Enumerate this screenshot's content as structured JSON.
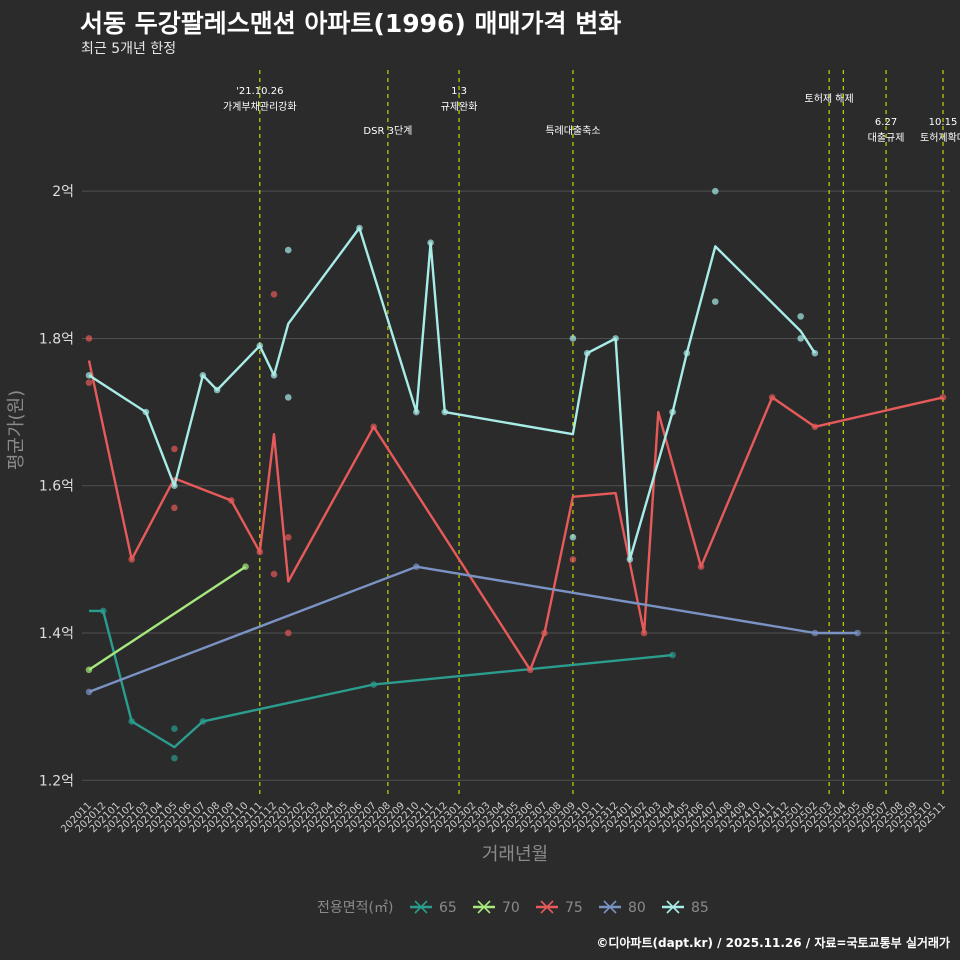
{
  "title": "서동 두강팔레스맨션 아파트(1996) 매매가격 변화",
  "subtitle": "최근 5개년 한정",
  "caption": "©디아파트(dapt.kr) / 2025.11.26 / 자료=국토교통부 실거래가",
  "chart_data": {
    "type": "line",
    "xlabel": "거래년월",
    "ylabel": "평균가(원)",
    "ylim": [
      1.18,
      2.17
    ],
    "y_unit": "억",
    "y_ticks": [
      {
        "value": 1.2,
        "label": "1.2억"
      },
      {
        "value": 1.4,
        "label": "1.4억"
      },
      {
        "value": 1.6,
        "label": "1.6억"
      },
      {
        "value": 1.8,
        "label": "1.8억"
      },
      {
        "value": 2.0,
        "label": "2억"
      }
    ],
    "categories": [
      "202011",
      "202012",
      "202101",
      "202102",
      "202103",
      "202104",
      "202105",
      "202106",
      "202107",
      "202108",
      "202109",
      "202110",
      "202111",
      "202112",
      "202201",
      "202202",
      "202203",
      "202204",
      "202205",
      "202206",
      "202207",
      "202208",
      "202209",
      "202210",
      "202211",
      "202212",
      "202301",
      "202302",
      "202303",
      "202304",
      "202305",
      "202306",
      "202307",
      "202308",
      "202309",
      "202310",
      "202311",
      "202312",
      "202401",
      "202402",
      "202403",
      "202404",
      "202405",
      "202406",
      "202407",
      "202408",
      "202409",
      "202410",
      "202411",
      "202412",
      "202501",
      "202502",
      "202503",
      "202504",
      "202505",
      "202506",
      "202507",
      "202508",
      "202509",
      "202510",
      "202511"
    ],
    "legend_title": "전용면적(㎡)",
    "series": [
      {
        "name": "65",
        "color": "#2a9d8f",
        "line": [
          [
            "202011",
            1.43
          ],
          [
            "202012",
            1.43
          ],
          [
            "202102",
            1.28
          ],
          [
            "202105",
            1.245
          ],
          [
            "202107",
            1.28
          ],
          [
            "202207",
            1.33
          ],
          [
            "202404",
            1.37
          ]
        ],
        "points": [
          [
            "202012",
            1.43
          ],
          [
            "202102",
            1.28
          ],
          [
            "202105",
            1.27
          ],
          [
            "202105",
            1.23
          ],
          [
            "202107",
            1.28
          ],
          [
            "202207",
            1.33
          ],
          [
            "202404",
            1.37
          ]
        ]
      },
      {
        "name": "70",
        "color": "#a6e87e",
        "line": [
          [
            "202011",
            1.35
          ],
          [
            "202110",
            1.49
          ]
        ],
        "points": [
          [
            "202011",
            1.35
          ],
          [
            "202110",
            1.49
          ]
        ]
      },
      {
        "name": "75",
        "color": "#e65a5a",
        "line": [
          [
            "202011",
            1.77
          ],
          [
            "202102",
            1.5
          ],
          [
            "202105",
            1.61
          ],
          [
            "202109",
            1.58
          ],
          [
            "202111",
            1.51
          ],
          [
            "202112",
            1.67
          ],
          [
            "202201",
            1.47
          ],
          [
            "202207",
            1.68
          ],
          [
            "202306",
            1.35
          ],
          [
            "202307",
            1.4
          ],
          [
            "202309",
            1.585
          ],
          [
            "202312",
            1.59
          ],
          [
            "202402",
            1.4
          ],
          [
            "202403",
            1.7
          ],
          [
            "202406",
            1.49
          ],
          [
            "202411",
            1.72
          ],
          [
            "202502",
            1.68
          ],
          [
            "202511",
            1.72
          ]
        ],
        "points": [
          [
            "202011",
            1.8
          ],
          [
            "202011",
            1.74
          ],
          [
            "202102",
            1.5
          ],
          [
            "202105",
            1.65
          ],
          [
            "202105",
            1.57
          ],
          [
            "202109",
            1.58
          ],
          [
            "202111",
            1.51
          ],
          [
            "202112",
            1.86
          ],
          [
            "202112",
            1.48
          ],
          [
            "202201",
            1.53
          ],
          [
            "202201",
            1.4
          ],
          [
            "202207",
            1.68
          ],
          [
            "202306",
            1.35
          ],
          [
            "202307",
            1.4
          ],
          [
            "202309",
            1.5
          ],
          [
            "202402",
            1.4
          ],
          [
            "202406",
            1.49
          ],
          [
            "202411",
            1.72
          ],
          [
            "202502",
            1.68
          ],
          [
            "202511",
            1.72
          ]
        ]
      },
      {
        "name": "80",
        "color": "#7b93c4",
        "line": [
          [
            "202011",
            1.32
          ],
          [
            "202210",
            1.49
          ],
          [
            "202502",
            1.4
          ],
          [
            "202505",
            1.4
          ]
        ],
        "points": [
          [
            "202011",
            1.32
          ],
          [
            "202210",
            1.49
          ],
          [
            "202502",
            1.4
          ],
          [
            "202505",
            1.4
          ]
        ]
      },
      {
        "name": "85",
        "color": "#a8ece8",
        "line": [
          [
            "202011",
            1.75
          ],
          [
            "202103",
            1.7
          ],
          [
            "202105",
            1.6
          ],
          [
            "202107",
            1.75
          ],
          [
            "202108",
            1.73
          ],
          [
            "202111",
            1.79
          ],
          [
            "202112",
            1.75
          ],
          [
            "202201",
            1.82
          ],
          [
            "202206",
            1.95
          ],
          [
            "202210",
            1.7
          ],
          [
            "202211",
            1.93
          ],
          [
            "202212",
            1.7
          ],
          [
            "202309",
            1.67
          ],
          [
            "202310",
            1.78
          ],
          [
            "202312",
            1.8
          ],
          [
            "202401",
            1.5
          ],
          [
            "202404",
            1.7
          ],
          [
            "202405",
            1.78
          ],
          [
            "202407",
            1.925
          ],
          [
            "202501",
            1.81
          ],
          [
            "202502",
            1.78
          ]
        ],
        "points": [
          [
            "202011",
            1.75
          ],
          [
            "202103",
            1.7
          ],
          [
            "202105",
            1.6
          ],
          [
            "202107",
            1.75
          ],
          [
            "202108",
            1.73
          ],
          [
            "202111",
            1.79
          ],
          [
            "202112",
            1.75
          ],
          [
            "202201",
            1.92
          ],
          [
            "202201",
            1.72
          ],
          [
            "202206",
            1.95
          ],
          [
            "202210",
            1.7
          ],
          [
            "202211",
            1.93
          ],
          [
            "202212",
            1.7
          ],
          [
            "202309",
            1.8
          ],
          [
            "202309",
            1.53
          ],
          [
            "202310",
            1.78
          ],
          [
            "202312",
            1.8
          ],
          [
            "202401",
            1.5
          ],
          [
            "202404",
            1.7
          ],
          [
            "202405",
            1.78
          ],
          [
            "202407",
            2.0
          ],
          [
            "202407",
            1.85
          ],
          [
            "202501",
            1.83
          ],
          [
            "202501",
            1.8
          ],
          [
            "202502",
            1.78
          ]
        ]
      }
    ],
    "events": [
      {
        "month": "202111",
        "label": "'21.10.26\n가계부채관리강화",
        "row": 1
      },
      {
        "month": "202208",
        "label": "DSR 3단계",
        "row": 2
      },
      {
        "month": "202301",
        "label": "1.3\n규제완화",
        "row": 1
      },
      {
        "month": "202309",
        "label": "특례대출축소",
        "row": 2
      },
      {
        "month": "202503",
        "label": "토허제 해제",
        "row": 1
      },
      {
        "month": "202504",
        "label": "",
        "row": 1
      },
      {
        "month": "202507",
        "label": "6.27\n대출규제",
        "row": 3
      },
      {
        "month": "202511",
        "label": "10.15\n토허제확대",
        "row": 3
      }
    ]
  }
}
